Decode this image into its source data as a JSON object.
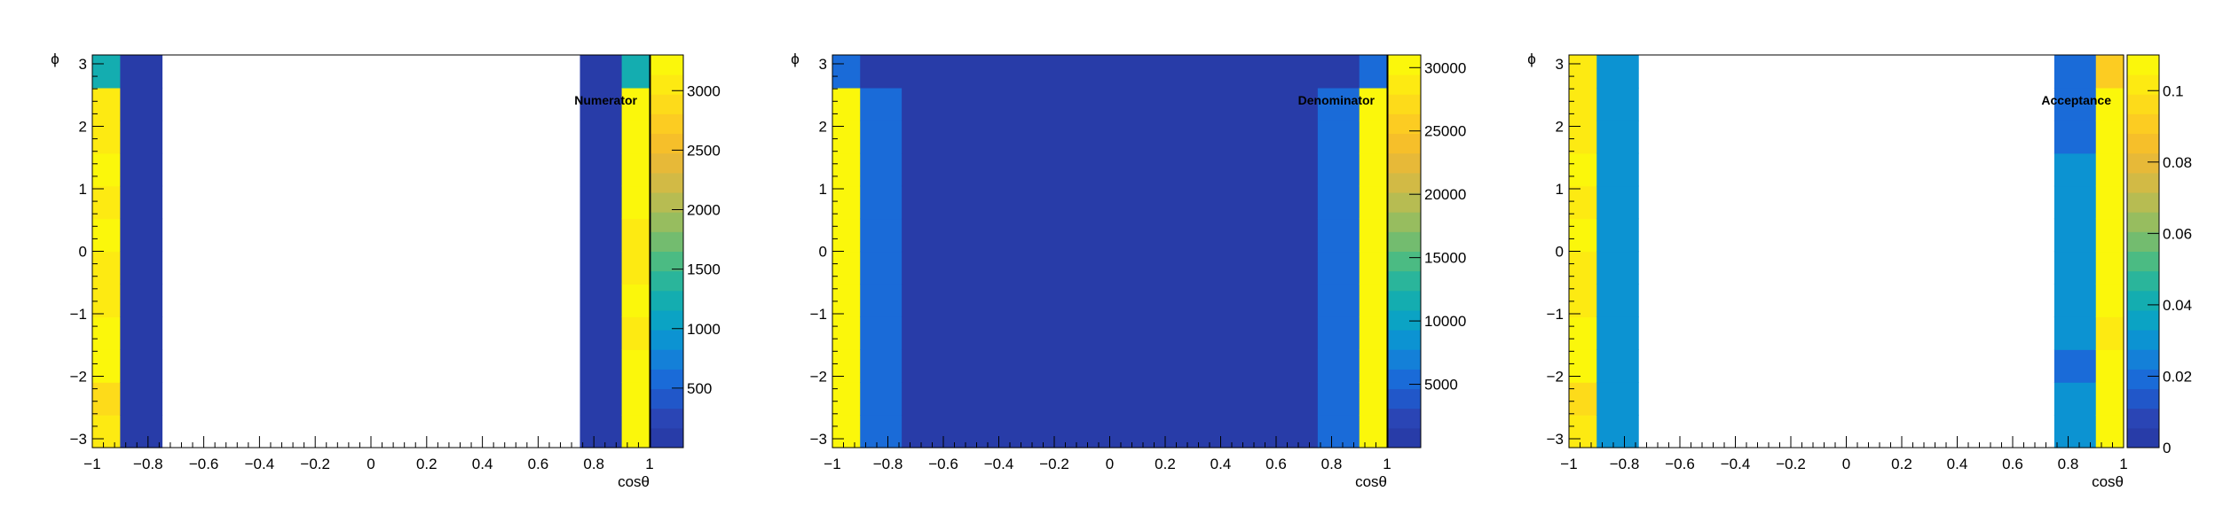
{
  "palette": [
    "#283ca8",
    "#2a45b5",
    "#2157c9",
    "#1a6bd8",
    "#1480d8",
    "#0c93d2",
    "#0ba3c4",
    "#14adb0",
    "#2ab59b",
    "#4bbb83",
    "#73bc6f",
    "#97bd5f",
    "#b7bc52",
    "#d2ba45",
    "#e7b938",
    "#f6bf2a",
    "#fccc22",
    "#fddb1a",
    "#fdea12",
    "#fbf70b"
  ],
  "chart_data": [
    {
      "type": "heatmap",
      "title": "Numerator",
      "xlabel": "cosθ",
      "ylabel": "ϕ",
      "xlim": [
        -1,
        1
      ],
      "ylim": [
        -3.1416,
        3.1416
      ],
      "x_bins": [
        -1.0,
        -0.9,
        -0.75,
        0.75,
        0.9,
        1.0
      ],
      "y_bins_count": 12,
      "zlim": [
        0,
        3300
      ],
      "x_ticks": [
        -1,
        -0.8,
        -0.6,
        -0.4,
        -0.2,
        0,
        0.2,
        0.4,
        0.6,
        0.8,
        1
      ],
      "x_tick_labels": [
        "−1",
        "−0.8",
        "−0.6",
        "−0.4",
        "−0.2",
        "0",
        "0.2",
        "0.4",
        "0.6",
        "0.8",
        "1"
      ],
      "y_ticks": [
        -3,
        -2,
        -1,
        0,
        1,
        2,
        3
      ],
      "y_tick_labels": [
        "−3",
        "−2",
        "−1",
        "0",
        "1",
        "2",
        "3"
      ],
      "z_ticks": [
        500,
        1000,
        1500,
        2000,
        2500,
        3000
      ],
      "z_tick_labels": [
        "500",
        "1000",
        "1500",
        "2000",
        "2500",
        "3000"
      ],
      "columns": [
        {
          "x_range": [
            -1.0,
            -0.9
          ],
          "values": [
            3100,
            2900,
            3150,
            3150,
            3100,
            3050,
            3150,
            3100,
            3150,
            3050,
            3100,
            1300
          ]
        },
        {
          "x_range": [
            -0.9,
            -0.75
          ],
          "values": [
            150,
            150,
            150,
            150,
            150,
            150,
            150,
            150,
            150,
            150,
            150,
            150
          ]
        },
        {
          "x_range": [
            -0.75,
            0.75
          ],
          "values": [
            null,
            null,
            null,
            null,
            null,
            null,
            null,
            null,
            null,
            null,
            null,
            null
          ]
        },
        {
          "x_range": [
            0.75,
            0.9
          ],
          "values": [
            150,
            150,
            150,
            150,
            150,
            150,
            150,
            150,
            150,
            150,
            150,
            150
          ]
        },
        {
          "x_range": [
            0.9,
            1.0
          ],
          "values": [
            3250,
            3250,
            3250,
            3100,
            3150,
            3100,
            3100,
            3150,
            3250,
            3250,
            3250,
            1300
          ]
        }
      ]
    },
    {
      "type": "heatmap",
      "title": "Denominator",
      "xlabel": "cosθ",
      "ylabel": "ϕ",
      "xlim": [
        -1,
        1
      ],
      "ylim": [
        -3.1416,
        3.1416
      ],
      "x_bins": [
        -1.0,
        -0.9,
        -0.75,
        0.75,
        0.9,
        1.0
      ],
      "y_bins_count": 12,
      "zlim": [
        0,
        31000
      ],
      "x_ticks": [
        -1,
        -0.8,
        -0.6,
        -0.4,
        -0.2,
        0,
        0.2,
        0.4,
        0.6,
        0.8,
        1
      ],
      "x_tick_labels": [
        "−1",
        "−0.8",
        "−0.6",
        "−0.4",
        "−0.2",
        "0",
        "0.2",
        "0.4",
        "0.6",
        "0.8",
        "1"
      ],
      "y_ticks": [
        -3,
        -2,
        -1,
        0,
        1,
        2,
        3
      ],
      "y_tick_labels": [
        "−3",
        "−2",
        "−1",
        "0",
        "1",
        "2",
        "3"
      ],
      "z_ticks": [
        5000,
        10000,
        15000,
        20000,
        25000,
        30000
      ],
      "z_tick_labels": [
        "5000",
        "10000",
        "15000",
        "20000",
        "25000",
        "30000"
      ],
      "columns": [
        {
          "x_range": [
            -1.0,
            -0.9
          ],
          "values": [
            30500,
            30500,
            30500,
            30500,
            30500,
            30500,
            30500,
            30500,
            30500,
            30500,
            30500,
            5000
          ]
        },
        {
          "x_range": [
            -0.9,
            -0.75
          ],
          "values": [
            5000,
            5000,
            5000,
            5000,
            5000,
            5000,
            5000,
            5000,
            5000,
            5000,
            5000,
            1000
          ]
        },
        {
          "x_range": [
            -0.75,
            0.75
          ],
          "values": [
            800,
            800,
            800,
            800,
            800,
            800,
            800,
            800,
            800,
            800,
            800,
            800
          ]
        },
        {
          "x_range": [
            0.75,
            0.9
          ],
          "values": [
            5000,
            5000,
            5000,
            5000,
            5000,
            5000,
            5000,
            5000,
            5000,
            5000,
            5000,
            1000
          ]
        },
        {
          "x_range": [
            0.9,
            1.0
          ],
          "values": [
            30500,
            30500,
            30500,
            30500,
            30500,
            30500,
            30500,
            30500,
            30500,
            30500,
            30500,
            5000
          ]
        }
      ]
    },
    {
      "type": "heatmap",
      "title": "Acceptance",
      "xlabel": "cosθ",
      "ylabel": "ϕ",
      "xlim": [
        -1,
        1
      ],
      "ylim": [
        -3.1416,
        3.1416
      ],
      "x_bins": [
        -1.0,
        -0.9,
        -0.75,
        0.75,
        0.9,
        1.0
      ],
      "y_bins_count": 12,
      "zlim": [
        0,
        0.11
      ],
      "x_ticks": [
        -1,
        -0.8,
        -0.6,
        -0.4,
        -0.2,
        0,
        0.2,
        0.4,
        0.6,
        0.8,
        1
      ],
      "x_tick_labels": [
        "−1",
        "−0.8",
        "−0.6",
        "−0.4",
        "−0.2",
        "0",
        "0.2",
        "0.4",
        "0.6",
        "0.8",
        "1"
      ],
      "y_ticks": [
        -3,
        -2,
        -1,
        0,
        1,
        2,
        3
      ],
      "y_tick_labels": [
        "−3",
        "−2",
        "−1",
        "0",
        "1",
        "2",
        "3"
      ],
      "z_ticks": [
        0,
        0.02,
        0.04,
        0.06,
        0.08,
        0.1
      ],
      "z_tick_labels": [
        "0",
        "0.02",
        "0.04",
        "0.06",
        "0.08",
        "0.1"
      ],
      "columns": [
        {
          "x_range": [
            -1.0,
            -0.9
          ],
          "values": [
            0.104,
            0.097,
            0.106,
            0.106,
            0.104,
            0.1,
            0.106,
            0.104,
            0.106,
            0.1,
            0.104,
            0.104
          ]
        },
        {
          "x_range": [
            -0.9,
            -0.75
          ],
          "values": [
            0.03,
            0.03,
            0.03,
            0.03,
            0.03,
            0.03,
            0.03,
            0.03,
            0.03,
            0.03,
            0.03,
            0.03
          ]
        },
        {
          "x_range": [
            -0.75,
            0.75
          ],
          "values": [
            null,
            null,
            null,
            null,
            null,
            null,
            null,
            null,
            null,
            null,
            null,
            null
          ]
        },
        {
          "x_range": [
            0.75,
            0.9
          ],
          "values": [
            0.03,
            0.03,
            0.02,
            0.03,
            0.03,
            0.03,
            0.03,
            0.03,
            0.03,
            0.02,
            0.02,
            0.02
          ]
        },
        {
          "x_range": [
            0.9,
            1.0
          ],
          "values": [
            0.108,
            0.108,
            0.108,
            0.1,
            0.108,
            0.108,
            0.108,
            0.108,
            0.108,
            0.108,
            0.108,
            0.092
          ]
        }
      ]
    }
  ]
}
